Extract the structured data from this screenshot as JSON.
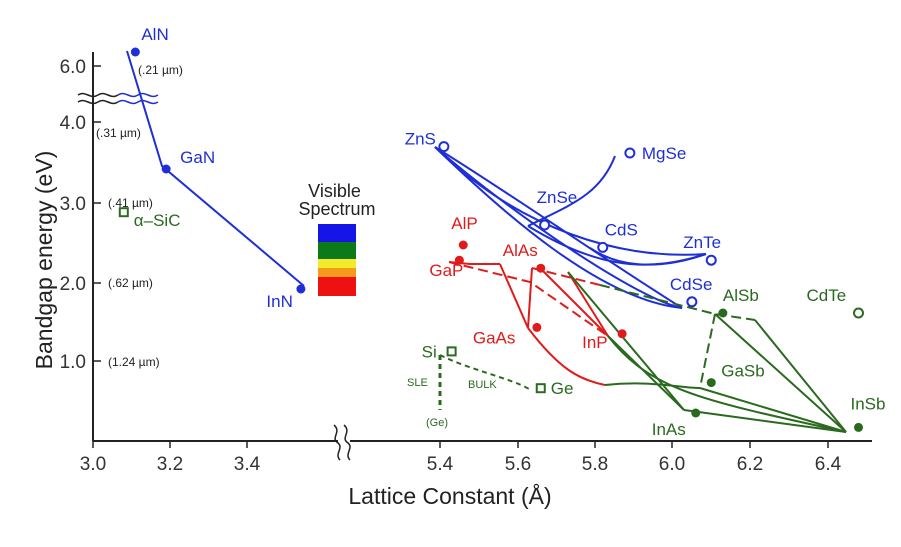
{
  "chart_data": {
    "type": "scatter",
    "title": "",
    "xlabel": "Lattice Constant (Å)",
    "ylabel": "Bandgap energy (eV)",
    "x_ticks": [
      "3.0",
      "3.2",
      "3.4",
      "5.4",
      "5.6",
      "5.8",
      "6.0",
      "6.2",
      "6.4"
    ],
    "y_ticks": [
      "1.0",
      "2.0",
      "3.0",
      "4.0",
      "6.0"
    ],
    "wavelength_labels": [
      "(.21 µm)",
      "(.31 µm)",
      "(.41 µm)",
      "(.62 µm)",
      "(1.24 µm)"
    ],
    "colors": {
      "nitride": "#1f2fd6",
      "ii_vi": "#1f2fd6",
      "iii_v": "#e01b1b",
      "group_iv": "#2a6a1f",
      "alsb_cdte": "#2a6a1f"
    },
    "materials": [
      {
        "name": "AlN",
        "x": 3.11,
        "y": 6.2,
        "group": "nitride"
      },
      {
        "name": "GaN",
        "x": 3.19,
        "y": 3.4,
        "group": "nitride"
      },
      {
        "name": "InN",
        "x": 3.54,
        "y": 1.9,
        "group": "nitride"
      },
      {
        "name": "α–SiC",
        "x": 3.08,
        "y": 2.86,
        "group": "group_iv"
      },
      {
        "name": "ZnS",
        "x": 5.41,
        "y": 3.68,
        "group": "ii_vi"
      },
      {
        "name": "ZnSe",
        "x": 5.67,
        "y": 2.7,
        "group": "ii_vi"
      },
      {
        "name": "MgSe",
        "x": 5.89,
        "y": 3.6,
        "group": "ii_vi"
      },
      {
        "name": "CdS",
        "x": 5.82,
        "y": 2.42,
        "group": "ii_vi"
      },
      {
        "name": "ZnTe",
        "x": 6.1,
        "y": 2.26,
        "group": "ii_vi"
      },
      {
        "name": "CdSe",
        "x": 6.05,
        "y": 1.74,
        "group": "ii_vi"
      },
      {
        "name": "AlP",
        "x": 5.46,
        "y": 2.45,
        "group": "iii_v"
      },
      {
        "name": "GaP",
        "x": 5.45,
        "y": 2.26,
        "group": "iii_v"
      },
      {
        "name": "AlAs",
        "x": 5.66,
        "y": 2.16,
        "group": "iii_v"
      },
      {
        "name": "GaAs",
        "x": 5.65,
        "y": 1.42,
        "group": "iii_v"
      },
      {
        "name": "InP",
        "x": 5.87,
        "y": 1.34,
        "group": "iii_v"
      },
      {
        "name": "Si",
        "x": 5.43,
        "y": 1.12,
        "group": "group_iv"
      },
      {
        "name": "Ge",
        "x": 5.66,
        "y": 0.66,
        "group": "group_iv"
      },
      {
        "name": "AlSb",
        "x": 6.13,
        "y": 1.6,
        "group": "group_iv"
      },
      {
        "name": "GaSb",
        "x": 6.1,
        "y": 0.73,
        "group": "group_iv"
      },
      {
        "name": "InAs",
        "x": 6.06,
        "y": 0.35,
        "group": "group_iv"
      },
      {
        "name": "InSb",
        "x": 6.48,
        "y": 0.17,
        "group": "group_iv"
      },
      {
        "name": "CdTe",
        "x": 6.48,
        "y": 1.6,
        "group": "group_iv"
      }
    ],
    "annotations": {
      "visible_spectrum": "Visible\nSpectrum",
      "sle": "SLE",
      "bulk": "BULK",
      "ge_note": "(Ge)"
    }
  }
}
